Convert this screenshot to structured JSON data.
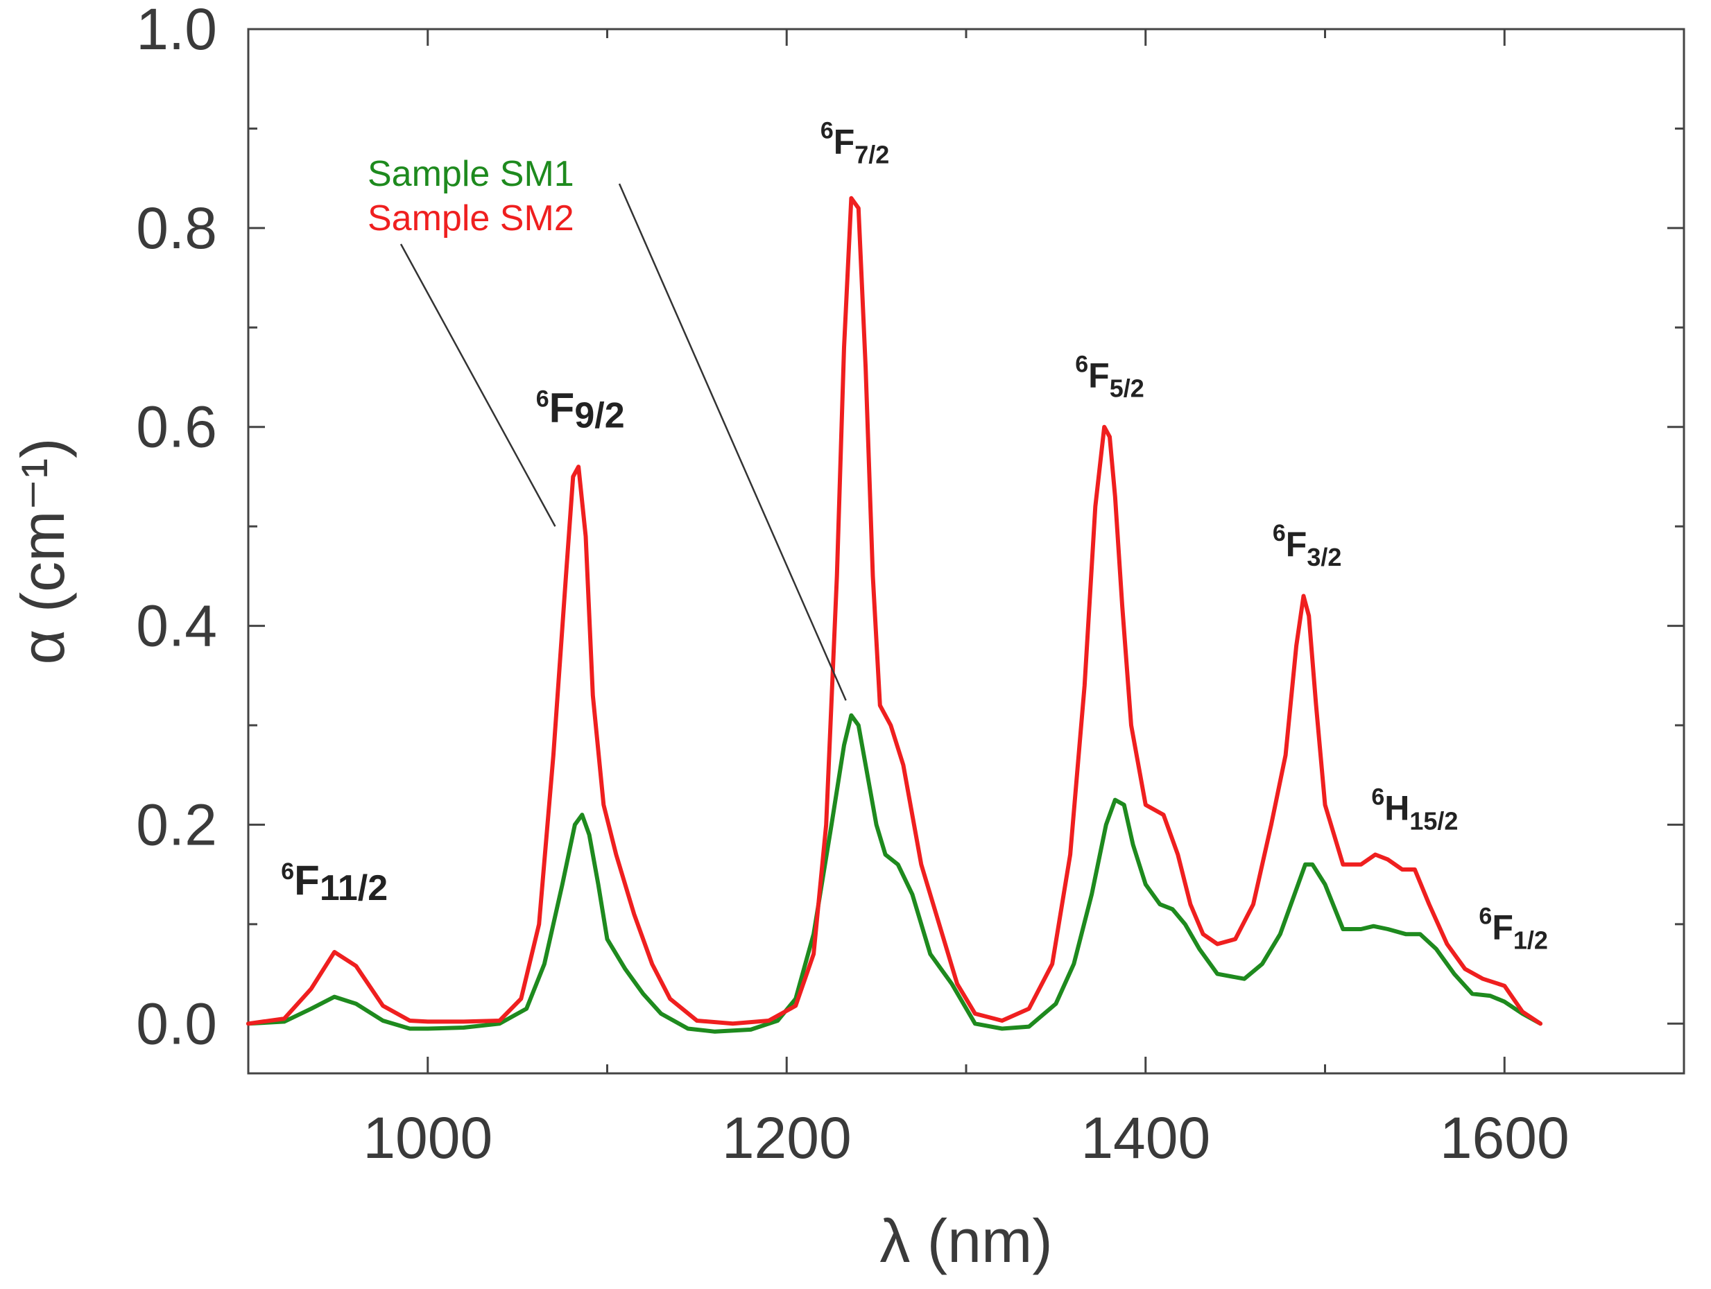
{
  "chart_data": {
    "type": "line",
    "xlabel": "λ (nm)",
    "ylabel": "α (cm⁻¹)",
    "xlim": [
      900,
      1700
    ],
    "ylim": [
      -0.05,
      1.0
    ],
    "xticks": [
      {
        "value": 1000,
        "label": "1000"
      },
      {
        "value": 1200,
        "label": "1200"
      },
      {
        "value": 1400,
        "label": "1400"
      },
      {
        "value": 1600,
        "label": "1600"
      }
    ],
    "yticks": [
      {
        "value": 0.0,
        "label": "0.0"
      },
      {
        "value": 0.2,
        "label": "0.2"
      },
      {
        "value": 0.4,
        "label": "0.4"
      },
      {
        "value": 0.6,
        "label": "0.6"
      },
      {
        "value": 0.8,
        "label": "0.8"
      },
      {
        "value": 1.0,
        "label": "1.0"
      }
    ],
    "minor_yticks": [
      0.1,
      0.3,
      0.5,
      0.7,
      0.9
    ],
    "series": [
      {
        "name": "Sample SM1",
        "color": "#1e8a1e",
        "x": [
          900,
          920,
          935,
          948,
          960,
          975,
          990,
          1000,
          1020,
          1040,
          1055,
          1065,
          1075,
          1082,
          1086,
          1090,
          1095,
          1100,
          1110,
          1120,
          1130,
          1145,
          1160,
          1180,
          1195,
          1205,
          1215,
          1225,
          1232,
          1236,
          1240,
          1245,
          1250,
          1255,
          1262,
          1270,
          1280,
          1292,
          1305,
          1320,
          1335,
          1350,
          1360,
          1370,
          1378,
          1383,
          1388,
          1393,
          1400,
          1408,
          1415,
          1422,
          1430,
          1440,
          1455,
          1465,
          1475,
          1483,
          1489,
          1493,
          1500,
          1510,
          1520,
          1527,
          1535,
          1545,
          1553,
          1562,
          1572,
          1582,
          1592,
          1600,
          1610,
          1620
        ],
        "y": [
          0.0,
          0.002,
          0.015,
          0.027,
          0.02,
          0.003,
          -0.005,
          -0.005,
          -0.004,
          0.0,
          0.015,
          0.06,
          0.14,
          0.2,
          0.21,
          0.19,
          0.14,
          0.085,
          0.055,
          0.03,
          0.01,
          -0.005,
          -0.008,
          -0.006,
          0.003,
          0.025,
          0.09,
          0.2,
          0.28,
          0.31,
          0.3,
          0.25,
          0.2,
          0.17,
          0.16,
          0.13,
          0.07,
          0.04,
          0.0,
          -0.005,
          -0.003,
          0.02,
          0.06,
          0.13,
          0.2,
          0.225,
          0.22,
          0.18,
          0.14,
          0.12,
          0.115,
          0.1,
          0.075,
          0.05,
          0.045,
          0.06,
          0.09,
          0.13,
          0.16,
          0.16,
          0.14,
          0.095,
          0.095,
          0.098,
          0.095,
          0.09,
          0.09,
          0.075,
          0.05,
          0.03,
          0.028,
          0.022,
          0.01,
          0.0
        ]
      },
      {
        "name": "Sample SM2",
        "color": "#ef1f1f",
        "x": [
          900,
          920,
          935,
          948,
          960,
          975,
          990,
          1000,
          1020,
          1040,
          1052,
          1062,
          1070,
          1077,
          1081,
          1084,
          1088,
          1092,
          1098,
          1105,
          1115,
          1125,
          1135,
          1150,
          1170,
          1190,
          1205,
          1215,
          1222,
          1228,
          1232,
          1236,
          1240,
          1244,
          1248,
          1252,
          1258,
          1265,
          1275,
          1285,
          1295,
          1305,
          1320,
          1335,
          1348,
          1358,
          1366,
          1372,
          1377,
          1380,
          1383,
          1387,
          1392,
          1400,
          1410,
          1418,
          1425,
          1432,
          1440,
          1450,
          1460,
          1470,
          1478,
          1484,
          1488,
          1491,
          1495,
          1500,
          1510,
          1520,
          1528,
          1535,
          1543,
          1550,
          1558,
          1568,
          1578,
          1588,
          1600,
          1610,
          1620
        ],
        "y": [
          0.0,
          0.005,
          0.035,
          0.072,
          0.058,
          0.018,
          0.003,
          0.002,
          0.002,
          0.003,
          0.025,
          0.1,
          0.27,
          0.45,
          0.55,
          0.56,
          0.49,
          0.33,
          0.22,
          0.17,
          0.11,
          0.06,
          0.025,
          0.003,
          0.0,
          0.003,
          0.018,
          0.07,
          0.2,
          0.45,
          0.68,
          0.83,
          0.82,
          0.66,
          0.45,
          0.32,
          0.3,
          0.26,
          0.16,
          0.1,
          0.04,
          0.01,
          0.003,
          0.015,
          0.06,
          0.17,
          0.34,
          0.52,
          0.6,
          0.59,
          0.53,
          0.42,
          0.3,
          0.22,
          0.21,
          0.17,
          0.12,
          0.09,
          0.08,
          0.085,
          0.12,
          0.2,
          0.27,
          0.38,
          0.43,
          0.41,
          0.32,
          0.22,
          0.16,
          0.16,
          0.17,
          0.165,
          0.155,
          0.155,
          0.12,
          0.08,
          0.055,
          0.045,
          0.038,
          0.012,
          0.0
        ]
      }
    ],
    "legend": [
      {
        "label": "Sample SM1",
        "color": "#1e8a1e"
      },
      {
        "label": "Sample SM2",
        "color": "#ef1f1f"
      }
    ],
    "annotations": [
      {
        "sup": "6",
        "base": "F",
        "sub": "11/2",
        "size": "big",
        "x": 948,
        "y": 0.13
      },
      {
        "sup": "6",
        "base": "F",
        "sub": "9/2",
        "size": "big",
        "x": 1085,
        "y": 0.605
      },
      {
        "sup": "6",
        "base": "F",
        "sub": "7/2",
        "size": "small",
        "x": 1238,
        "y": 0.875
      },
      {
        "sup": "6",
        "base": "F",
        "sub": "5/2",
        "size": "small",
        "x": 1380,
        "y": 0.64
      },
      {
        "sup": "6",
        "base": "F",
        "sub": "3/2",
        "size": "small",
        "x": 1490,
        "y": 0.47
      },
      {
        "sup": "6",
        "base": "H",
        "sub": "15/2",
        "size": "small",
        "x": 1550,
        "y": 0.205
      },
      {
        "sup": "6",
        "base": "F",
        "sub": "1/2",
        "size": "small",
        "x": 1605,
        "y": 0.085
      }
    ]
  }
}
